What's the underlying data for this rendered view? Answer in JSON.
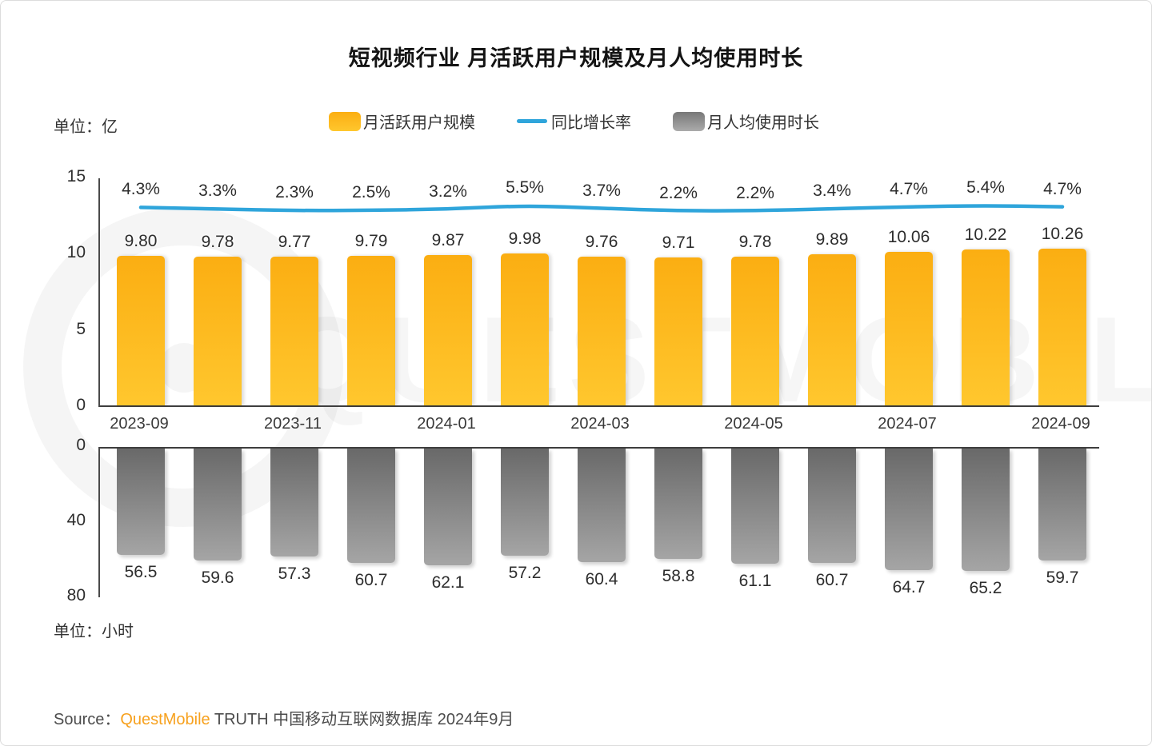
{
  "title": "短视频行业 月活跃用户规模及月人均使用时长",
  "units": {
    "top": "单位：亿",
    "bottom": "单位：小时"
  },
  "legend": {
    "items": [
      {
        "label": "月活跃用户规模",
        "type": "bar",
        "color_top": "#FBAE12",
        "color_bottom": "#FFC72E"
      },
      {
        "label": "同比增长率",
        "type": "line",
        "color": "#2FA5DB"
      },
      {
        "label": "月人均使用时长",
        "type": "bar",
        "color_top": "#696969",
        "color_bottom": "#A5A5A5"
      }
    ]
  },
  "watermark": "QUESTMOBILE",
  "source": {
    "prefix": "Source：",
    "brand": "QuestMobile",
    "suffix": " TRUTH 中国移动互联网数据库 2024年9月"
  },
  "chart_data": {
    "type": "bar+line",
    "num_points": 13,
    "x_tick_labels": [
      "2023-09",
      "2023-11",
      "2024-01",
      "2024-03",
      "2024-05",
      "2024-07",
      "2024-09"
    ],
    "x_tick_positions": [
      0,
      2,
      4,
      6,
      8,
      10,
      12
    ],
    "series": [
      {
        "name": "月活跃用户规模",
        "type": "bar",
        "unit": "亿",
        "axis": "top",
        "values": [
          9.8,
          9.78,
          9.77,
          9.79,
          9.87,
          9.98,
          9.76,
          9.71,
          9.78,
          9.89,
          10.06,
          10.22,
          10.26
        ]
      },
      {
        "name": "同比增长率",
        "type": "line",
        "unit": "%",
        "axis": "top-secondary",
        "values": [
          4.3,
          3.3,
          2.3,
          2.5,
          3.2,
          5.5,
          3.7,
          2.2,
          2.2,
          3.4,
          4.7,
          5.4,
          4.7
        ]
      },
      {
        "name": "月人均使用时长",
        "type": "bar",
        "unit": "小时",
        "axis": "bottom-inverted",
        "values": [
          56.5,
          59.6,
          57.3,
          60.7,
          62.1,
          57.2,
          60.4,
          58.8,
          61.1,
          60.7,
          64.7,
          65.2,
          59.7
        ]
      }
    ],
    "top_axis": {
      "ticks": [
        15,
        10,
        5,
        0
      ],
      "min": 0,
      "max": 15
    },
    "bottom_axis": {
      "ticks": [
        0,
        40,
        80
      ],
      "min": 0,
      "max": 80,
      "inverted": true
    },
    "grid": false,
    "legend_position": "top-center"
  }
}
